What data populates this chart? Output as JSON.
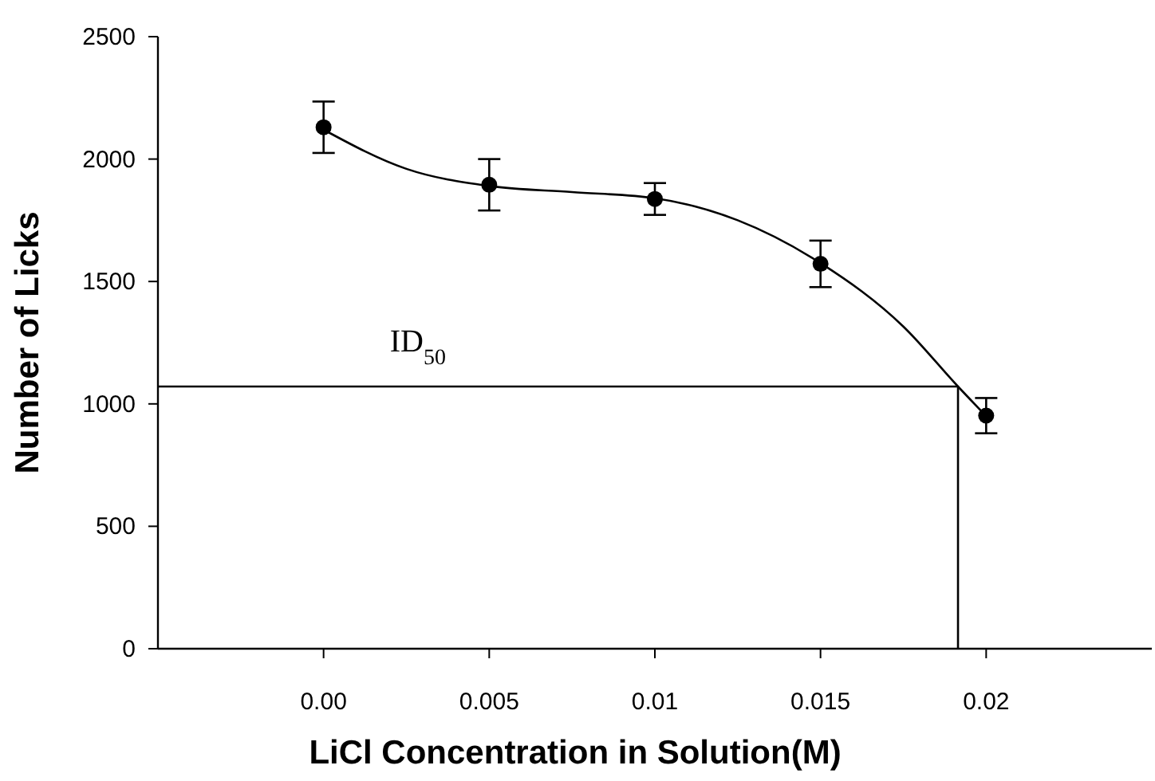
{
  "chart_data": {
    "type": "scatter",
    "xlabel": "LiCl Concentration in Solution(M)",
    "ylabel": "Number of Licks",
    "xlim": [
      -0.005,
      0.025
    ],
    "xticks": [
      {
        "value": 0,
        "label": "0.00"
      },
      0.005,
      0.01,
      0.015,
      0.02
    ],
    "ylim": [
      0,
      2500
    ],
    "yticks": [
      0,
      500,
      1000,
      1500,
      2000,
      2500
    ],
    "grid": false,
    "series": [
      {
        "type": "line",
        "color": "#000000",
        "marker": "none",
        "x": [
          0,
          0.0025,
          0.005,
          0.0075,
          0.01,
          0.0125,
          0.015,
          0.0175,
          0.01915,
          0.02
        ],
        "values": [
          2120,
          1960,
          1890,
          1865,
          1840,
          1750,
          1575,
          1316,
          1071,
          950
        ]
      },
      {
        "type": "line",
        "color": "#000000",
        "marker": "none",
        "x": [
          -0.005,
          0.01915,
          0.01915
        ],
        "values": [
          1071,
          1071,
          0
        ]
      },
      {
        "color": "#000000",
        "marker": "circle",
        "x": [
          0,
          0.005,
          0.01,
          0.015,
          0.02
        ],
        "values": [
          2130,
          1895,
          1837,
          1572,
          952
        ],
        "errors": [
          105,
          105,
          65,
          95,
          72
        ]
      }
    ],
    "annotations": [
      {
        "text": "ID$_{50}$",
        "x": 0.002,
        "y": 1071
      }
    ]
  }
}
